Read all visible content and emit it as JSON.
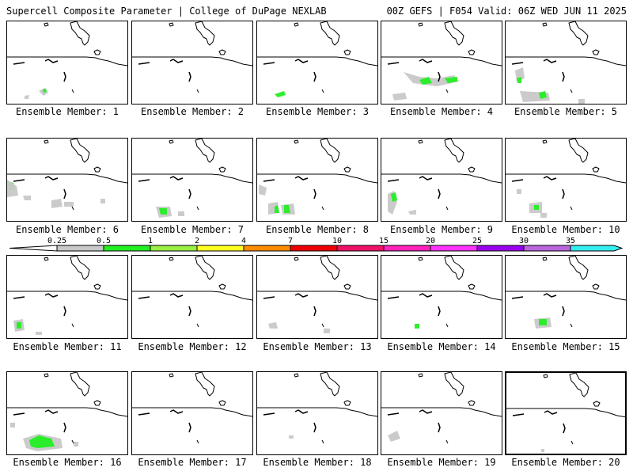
{
  "header": {
    "title": "Supercell Composite Parameter | College of DuPage NEXLAB",
    "valid": "00Z GEFS | F054 Valid: 06Z WED JUN 11 2025"
  },
  "member_label_prefix": "Ensemble Member:",
  "colorbar": {
    "ticks": [
      "0.25",
      "0.5",
      "1",
      "2",
      "4",
      "7",
      "10",
      "15",
      "20",
      "25",
      "30",
      "35"
    ],
    "colors": [
      "#c8c8c8",
      "#22ee22",
      "#99ee44",
      "#ffff22",
      "#ff8c00",
      "#ee0000",
      "#ee1166",
      "#ff22bb",
      "#ff33ff",
      "#9900ee",
      "#bb66dd",
      "#33eeee"
    ]
  },
  "panels": [
    {
      "member": 1,
      "label": "Ensemble Member: 1",
      "selected": false
    },
    {
      "member": 2,
      "label": "Ensemble Member: 2",
      "selected": false
    },
    {
      "member": 3,
      "label": "Ensemble Member: 3",
      "selected": false
    },
    {
      "member": 4,
      "label": "Ensemble Member: 4",
      "selected": false
    },
    {
      "member": 5,
      "label": "Ensemble Member: 5",
      "selected": false
    },
    {
      "member": 6,
      "label": "Ensemble Member: 6",
      "selected": false
    },
    {
      "member": 7,
      "label": "Ensemble Member: 7",
      "selected": false
    },
    {
      "member": 8,
      "label": "Ensemble Member: 8",
      "selected": false
    },
    {
      "member": 9,
      "label": "Ensemble Member: 9",
      "selected": false
    },
    {
      "member": 10,
      "label": "Ensemble Member: 10",
      "selected": false
    },
    {
      "member": 11,
      "label": "Ensemble Member: 11",
      "selected": false
    },
    {
      "member": 12,
      "label": "Ensemble Member: 12",
      "selected": false
    },
    {
      "member": 13,
      "label": "Ensemble Member: 13",
      "selected": false
    },
    {
      "member": 14,
      "label": "Ensemble Member: 14",
      "selected": false
    },
    {
      "member": 15,
      "label": "Ensemble Member: 15",
      "selected": false
    },
    {
      "member": 16,
      "label": "Ensemble Member: 16",
      "selected": false
    },
    {
      "member": 17,
      "label": "Ensemble Member: 17",
      "selected": false
    },
    {
      "member": 18,
      "label": "Ensemble Member: 18",
      "selected": false
    },
    {
      "member": 19,
      "label": "Ensemble Member: 19",
      "selected": false
    },
    {
      "member": 20,
      "label": "Ensemble Member: 20",
      "selected": true
    }
  ]
}
